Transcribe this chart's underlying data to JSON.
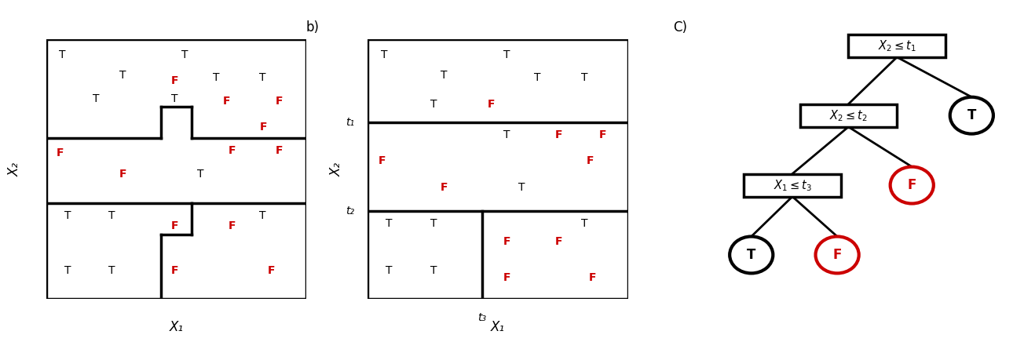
{
  "panel_a_label": "b)",
  "panel_c_label": "C)",
  "panel_a_xlabel": "X₁",
  "panel_a_ylabel": "X₂",
  "panel_b_xlabel": "X₁",
  "panel_b_ylabel": "X₂",
  "t1_label": "t₁",
  "t2_label": "t₂",
  "t3_label": "t₃",
  "black_color": "#000000",
  "red_color": "#cc0000"
}
